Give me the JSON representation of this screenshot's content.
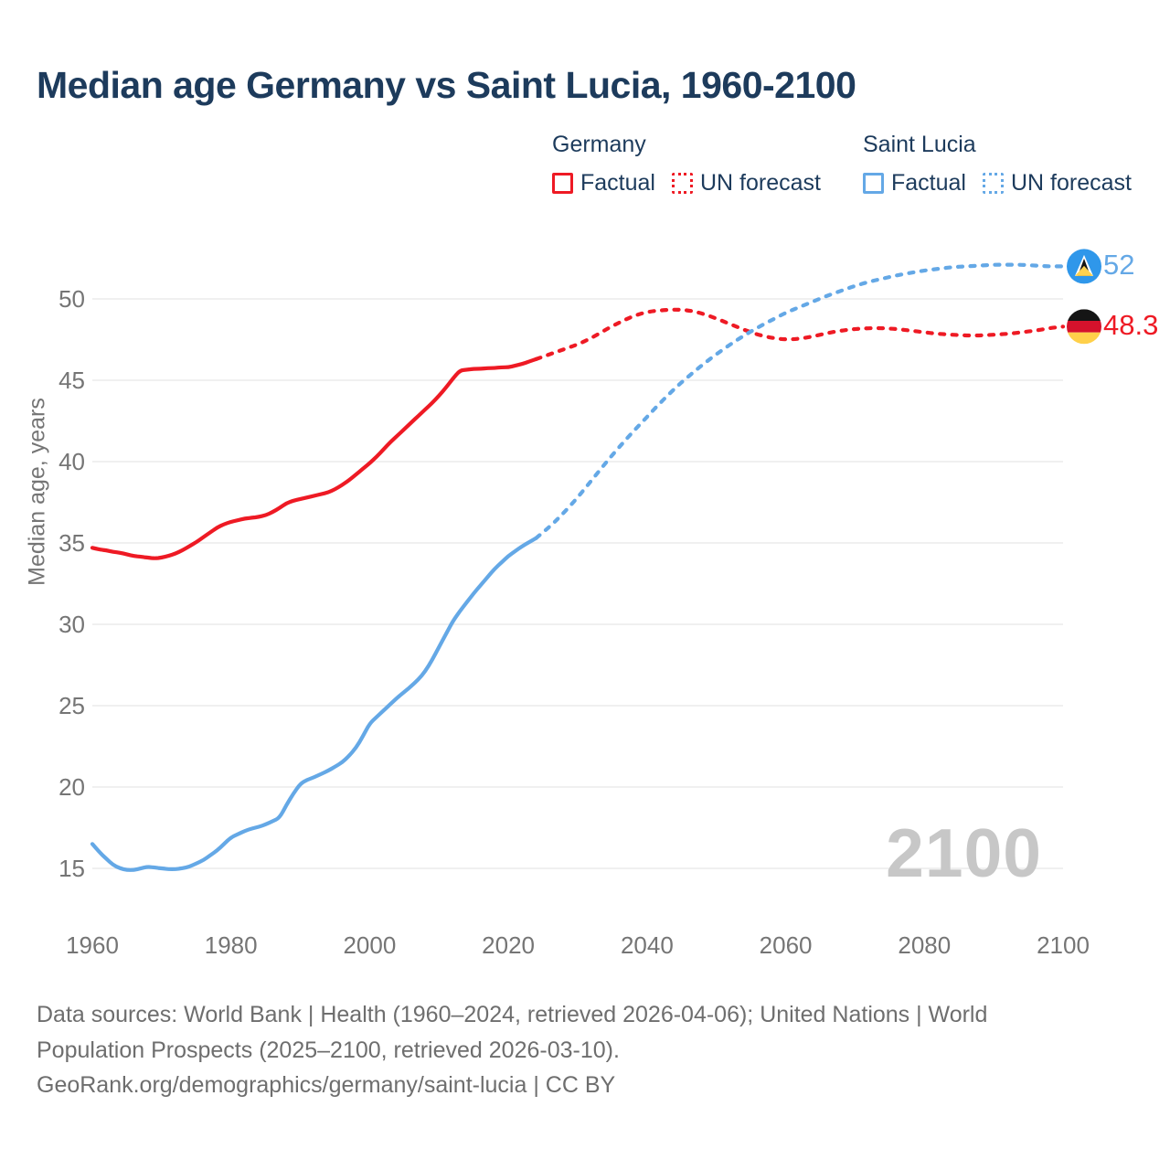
{
  "title": "Median age Germany vs Saint Lucia, 1960-2100",
  "watermark": "2100",
  "colors": {
    "germany_line": "#ee1a24",
    "saint_lucia_line": "#64a8e6",
    "title_text": "#1d3b5c",
    "axis_text": "#757575",
    "gridline": "#ebebeb",
    "watermark_text": "#c7c7c7",
    "footer_text": "#6e6e6e",
    "saint_lucia_flag_blue": "#2f97ea",
    "saint_lucia_flag_gold": "#ffd24f",
    "germany_flag_black": "#151515",
    "germany_flag_red": "#d5122c",
    "germany_flag_gold": "#ffd04a"
  },
  "legend": {
    "groups": [
      {
        "name": "Germany",
        "color": "#ee1a24",
        "items": [
          {
            "label": "Factual",
            "style": "solid"
          },
          {
            "label": "UN forecast",
            "style": "dotted"
          }
        ]
      },
      {
        "name": "Saint Lucia",
        "color": "#64a8e6",
        "items": [
          {
            "label": "Factual",
            "style": "solid"
          },
          {
            "label": "UN forecast",
            "style": "dotted"
          }
        ]
      }
    ]
  },
  "end_labels": [
    {
      "series": "Saint Lucia",
      "value": "52",
      "flag": "saint-lucia"
    },
    {
      "series": "Germany",
      "value": "48.3",
      "flag": "germany"
    }
  ],
  "footer": {
    "lines": [
      "Data sources: World Bank | Health (1960–2024, retrieved 2026-04-06); United Nations | World",
      "Population Prospects (2025–2100, retrieved 2026-03-10).",
      "GeoRank.org/demographics/germany/saint-lucia | CC BY"
    ]
  },
  "chart_data": {
    "type": "line",
    "title": "Median age Germany vs Saint Lucia, 1960-2100",
    "xlabel": "",
    "ylabel": "Median age, years",
    "xlim": [
      1960,
      2100
    ],
    "ylim": [
      13,
      53
    ],
    "x_ticks": [
      1960,
      1980,
      2000,
      2020,
      2040,
      2060,
      2080,
      2100
    ],
    "y_ticks": [
      15,
      20,
      25,
      30,
      35,
      40,
      45,
      50
    ],
    "grid": "horizontal",
    "legend_position": "top",
    "series": [
      {
        "key": "germany-factual",
        "name": "Germany — Factual",
        "style": "solid",
        "color": "#ee1a24",
        "points": [
          [
            1960,
            34.7
          ],
          [
            1961,
            34.6
          ],
          [
            1962,
            34.55
          ],
          [
            1963,
            34.45
          ],
          [
            1964,
            34.4
          ],
          [
            1965,
            34.3
          ],
          [
            1966,
            34.2
          ],
          [
            1967,
            34.15
          ],
          [
            1968,
            34.1
          ],
          [
            1969,
            34.05
          ],
          [
            1970,
            34.1
          ],
          [
            1971,
            34.2
          ],
          [
            1972,
            34.35
          ],
          [
            1973,
            34.55
          ],
          [
            1974,
            34.8
          ],
          [
            1975,
            35.05
          ],
          [
            1976,
            35.35
          ],
          [
            1977,
            35.65
          ],
          [
            1978,
            35.95
          ],
          [
            1979,
            36.15
          ],
          [
            1980,
            36.3
          ],
          [
            1981,
            36.4
          ],
          [
            1982,
            36.5
          ],
          [
            1983,
            36.55
          ],
          [
            1984,
            36.6
          ],
          [
            1985,
            36.7
          ],
          [
            1986,
            36.9
          ],
          [
            1987,
            37.15
          ],
          [
            1988,
            37.45
          ],
          [
            1989,
            37.6
          ],
          [
            1990,
            37.7
          ],
          [
            1991,
            37.8
          ],
          [
            1992,
            37.9
          ],
          [
            1993,
            38.0
          ],
          [
            1994,
            38.1
          ],
          [
            1995,
            38.3
          ],
          [
            1996,
            38.55
          ],
          [
            1997,
            38.85
          ],
          [
            1998,
            39.2
          ],
          [
            1999,
            39.55
          ],
          [
            2000,
            39.9
          ],
          [
            2001,
            40.3
          ],
          [
            2002,
            40.75
          ],
          [
            2003,
            41.2
          ],
          [
            2004,
            41.6
          ],
          [
            2005,
            42.0
          ],
          [
            2006,
            42.4
          ],
          [
            2007,
            42.8
          ],
          [
            2008,
            43.2
          ],
          [
            2009,
            43.6
          ],
          [
            2010,
            44.05
          ],
          [
            2011,
            44.55
          ],
          [
            2012,
            45.1
          ],
          [
            2013,
            45.6
          ],
          [
            2014,
            45.65
          ],
          [
            2015,
            45.7
          ],
          [
            2016,
            45.7
          ],
          [
            2017,
            45.75
          ],
          [
            2018,
            45.75
          ],
          [
            2019,
            45.8
          ],
          [
            2020,
            45.8
          ],
          [
            2021,
            45.9
          ],
          [
            2022,
            46.0
          ],
          [
            2023,
            46.15
          ],
          [
            2024,
            46.3
          ]
        ]
      },
      {
        "key": "germany-forecast",
        "name": "Germany — UN forecast",
        "style": "dashed",
        "color": "#ee1a24",
        "points": [
          [
            2024,
            46.3
          ],
          [
            2026,
            46.6
          ],
          [
            2028,
            46.9
          ],
          [
            2030,
            47.2
          ],
          [
            2032,
            47.6
          ],
          [
            2034,
            48.1
          ],
          [
            2036,
            48.55
          ],
          [
            2038,
            48.95
          ],
          [
            2040,
            49.2
          ],
          [
            2042,
            49.3
          ],
          [
            2044,
            49.35
          ],
          [
            2046,
            49.3
          ],
          [
            2048,
            49.1
          ],
          [
            2050,
            48.8
          ],
          [
            2052,
            48.45
          ],
          [
            2054,
            48.1
          ],
          [
            2056,
            47.8
          ],
          [
            2058,
            47.6
          ],
          [
            2060,
            47.5
          ],
          [
            2062,
            47.55
          ],
          [
            2064,
            47.7
          ],
          [
            2066,
            47.9
          ],
          [
            2068,
            48.05
          ],
          [
            2070,
            48.15
          ],
          [
            2072,
            48.2
          ],
          [
            2074,
            48.2
          ],
          [
            2076,
            48.15
          ],
          [
            2078,
            48.05
          ],
          [
            2080,
            47.95
          ],
          [
            2082,
            47.85
          ],
          [
            2084,
            47.8
          ],
          [
            2086,
            47.75
          ],
          [
            2088,
            47.75
          ],
          [
            2090,
            47.8
          ],
          [
            2092,
            47.85
          ],
          [
            2094,
            47.95
          ],
          [
            2096,
            48.05
          ],
          [
            2098,
            48.2
          ],
          [
            2100,
            48.3
          ]
        ]
      },
      {
        "key": "saint-lucia-factual",
        "name": "Saint Lucia — Factual",
        "style": "solid",
        "color": "#64a8e6",
        "points": [
          [
            1960,
            16.5
          ],
          [
            1961,
            16.0
          ],
          [
            1962,
            15.6
          ],
          [
            1963,
            15.2
          ],
          [
            1964,
            15.0
          ],
          [
            1965,
            14.9
          ],
          [
            1966,
            14.9
          ],
          [
            1967,
            15.0
          ],
          [
            1968,
            15.1
          ],
          [
            1969,
            15.05
          ],
          [
            1970,
            15.0
          ],
          [
            1971,
            14.95
          ],
          [
            1972,
            14.95
          ],
          [
            1973,
            15.0
          ],
          [
            1974,
            15.1
          ],
          [
            1975,
            15.3
          ],
          [
            1976,
            15.5
          ],
          [
            1977,
            15.8
          ],
          [
            1978,
            16.1
          ],
          [
            1979,
            16.5
          ],
          [
            1980,
            16.9
          ],
          [
            1981,
            17.1
          ],
          [
            1982,
            17.3
          ],
          [
            1983,
            17.45
          ],
          [
            1984,
            17.55
          ],
          [
            1985,
            17.7
          ],
          [
            1986,
            17.9
          ],
          [
            1987,
            18.1
          ],
          [
            1988,
            18.9
          ],
          [
            1989,
            19.6
          ],
          [
            1990,
            20.2
          ],
          [
            1991,
            20.45
          ],
          [
            1992,
            20.6
          ],
          [
            1993,
            20.8
          ],
          [
            1994,
            21.0
          ],
          [
            1995,
            21.25
          ],
          [
            1996,
            21.5
          ],
          [
            1997,
            21.9
          ],
          [
            1998,
            22.4
          ],
          [
            1999,
            23.1
          ],
          [
            2000,
            23.9
          ],
          [
            2001,
            24.3
          ],
          [
            2002,
            24.7
          ],
          [
            2003,
            25.1
          ],
          [
            2004,
            25.5
          ],
          [
            2005,
            25.85
          ],
          [
            2006,
            26.2
          ],
          [
            2007,
            26.6
          ],
          [
            2008,
            27.1
          ],
          [
            2009,
            27.8
          ],
          [
            2010,
            28.6
          ],
          [
            2011,
            29.4
          ],
          [
            2012,
            30.2
          ],
          [
            2013,
            30.8
          ],
          [
            2014,
            31.35
          ],
          [
            2015,
            31.9
          ],
          [
            2016,
            32.4
          ],
          [
            2017,
            32.9
          ],
          [
            2018,
            33.4
          ],
          [
            2019,
            33.8
          ],
          [
            2020,
            34.2
          ],
          [
            2021,
            34.5
          ],
          [
            2022,
            34.8
          ],
          [
            2023,
            35.05
          ],
          [
            2024,
            35.3
          ]
        ]
      },
      {
        "key": "saint-lucia-forecast",
        "name": "Saint Lucia — UN forecast",
        "style": "dashed",
        "color": "#64a8e6",
        "points": [
          [
            2024,
            35.3
          ],
          [
            2026,
            36.0
          ],
          [
            2028,
            36.85
          ],
          [
            2030,
            37.8
          ],
          [
            2032,
            38.85
          ],
          [
            2034,
            39.9
          ],
          [
            2036,
            40.9
          ],
          [
            2038,
            41.85
          ],
          [
            2040,
            42.75
          ],
          [
            2042,
            43.65
          ],
          [
            2044,
            44.5
          ],
          [
            2046,
            45.25
          ],
          [
            2048,
            45.95
          ],
          [
            2050,
            46.6
          ],
          [
            2052,
            47.2
          ],
          [
            2054,
            47.75
          ],
          [
            2056,
            48.25
          ],
          [
            2058,
            48.7
          ],
          [
            2060,
            49.15
          ],
          [
            2062,
            49.5
          ],
          [
            2064,
            49.85
          ],
          [
            2066,
            50.2
          ],
          [
            2068,
            50.5
          ],
          [
            2070,
            50.8
          ],
          [
            2072,
            51.05
          ],
          [
            2074,
            51.25
          ],
          [
            2076,
            51.45
          ],
          [
            2078,
            51.6
          ],
          [
            2080,
            51.75
          ],
          [
            2082,
            51.85
          ],
          [
            2084,
            51.95
          ],
          [
            2086,
            52.0
          ],
          [
            2088,
            52.05
          ],
          [
            2090,
            52.1
          ],
          [
            2092,
            52.1
          ],
          [
            2094,
            52.1
          ],
          [
            2096,
            52.05
          ],
          [
            2098,
            52.0
          ],
          [
            2100,
            52.0
          ]
        ]
      }
    ]
  }
}
